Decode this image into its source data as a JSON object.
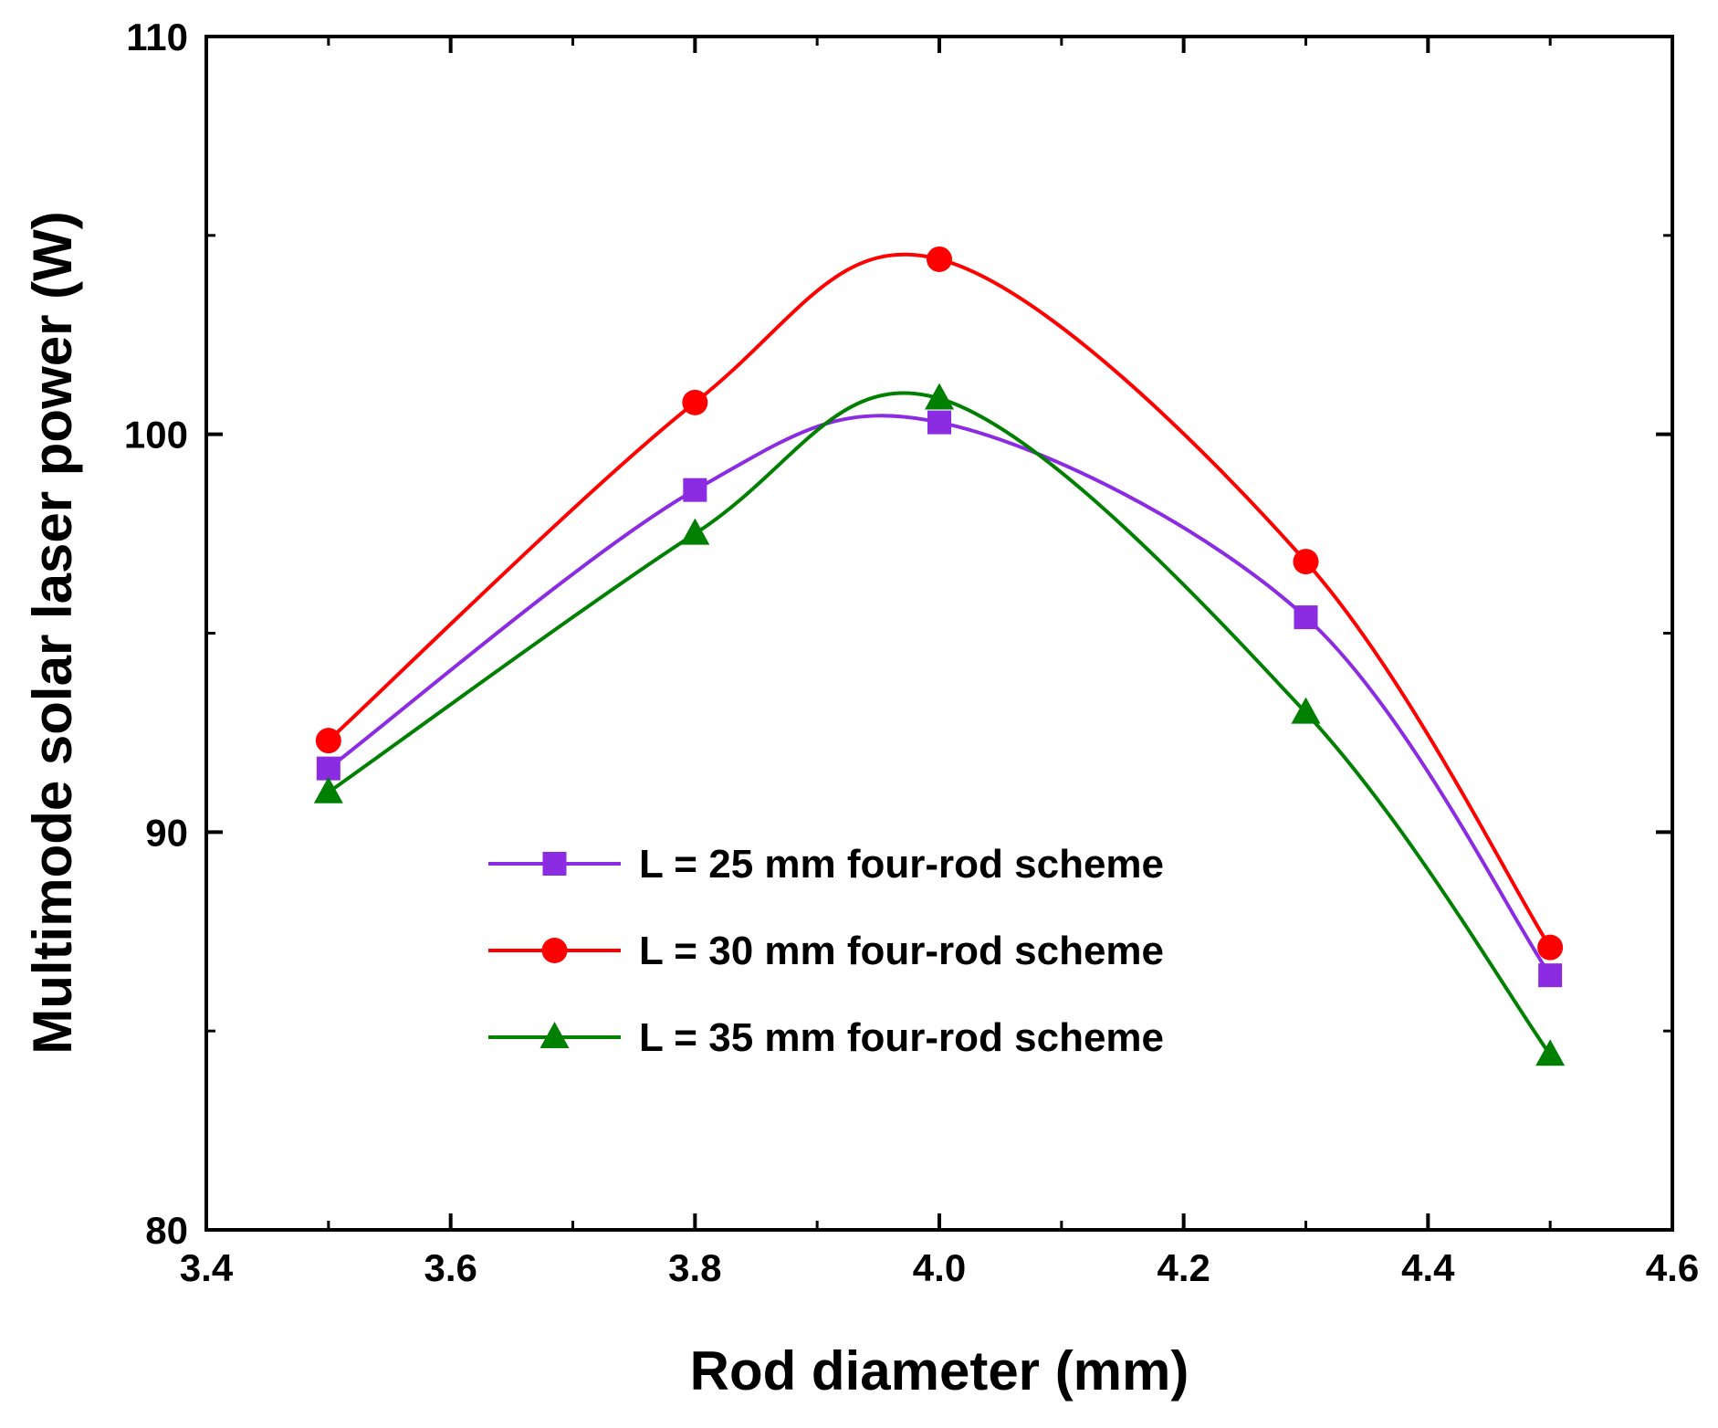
{
  "chart_data": {
    "type": "line",
    "title": "",
    "xlabel": "Rod diameter (mm)",
    "ylabel": "Multimode solar laser power (W)",
    "xlim": [
      3.4,
      4.6
    ],
    "ylim": [
      80,
      110
    ],
    "xticks": [
      "3.4",
      "3.6",
      "3.8",
      "4.0",
      "4.2",
      "4.4",
      "4.6"
    ],
    "yticks": [
      "80",
      "90",
      "100",
      "110"
    ],
    "x": [
      3.5,
      3.8,
      4.0,
      4.3,
      4.5
    ],
    "legend_position": "center",
    "series": [
      {
        "name": "L = 25 mm four-rod scheme",
        "marker": "square",
        "color": "#8b2be2",
        "values": [
          91.6,
          98.6,
          100.3,
          95.4,
          86.4
        ]
      },
      {
        "name": "L = 30 mm four-rod scheme",
        "marker": "circle",
        "color": "#ff0000",
        "values": [
          92.3,
          100.8,
          104.4,
          96.8,
          87.1
        ]
      },
      {
        "name": "L = 35 mm four-rod scheme",
        "marker": "triangle",
        "color": "#008000",
        "values": [
          91.0,
          97.5,
          100.9,
          93.0,
          84.4
        ]
      }
    ]
  }
}
